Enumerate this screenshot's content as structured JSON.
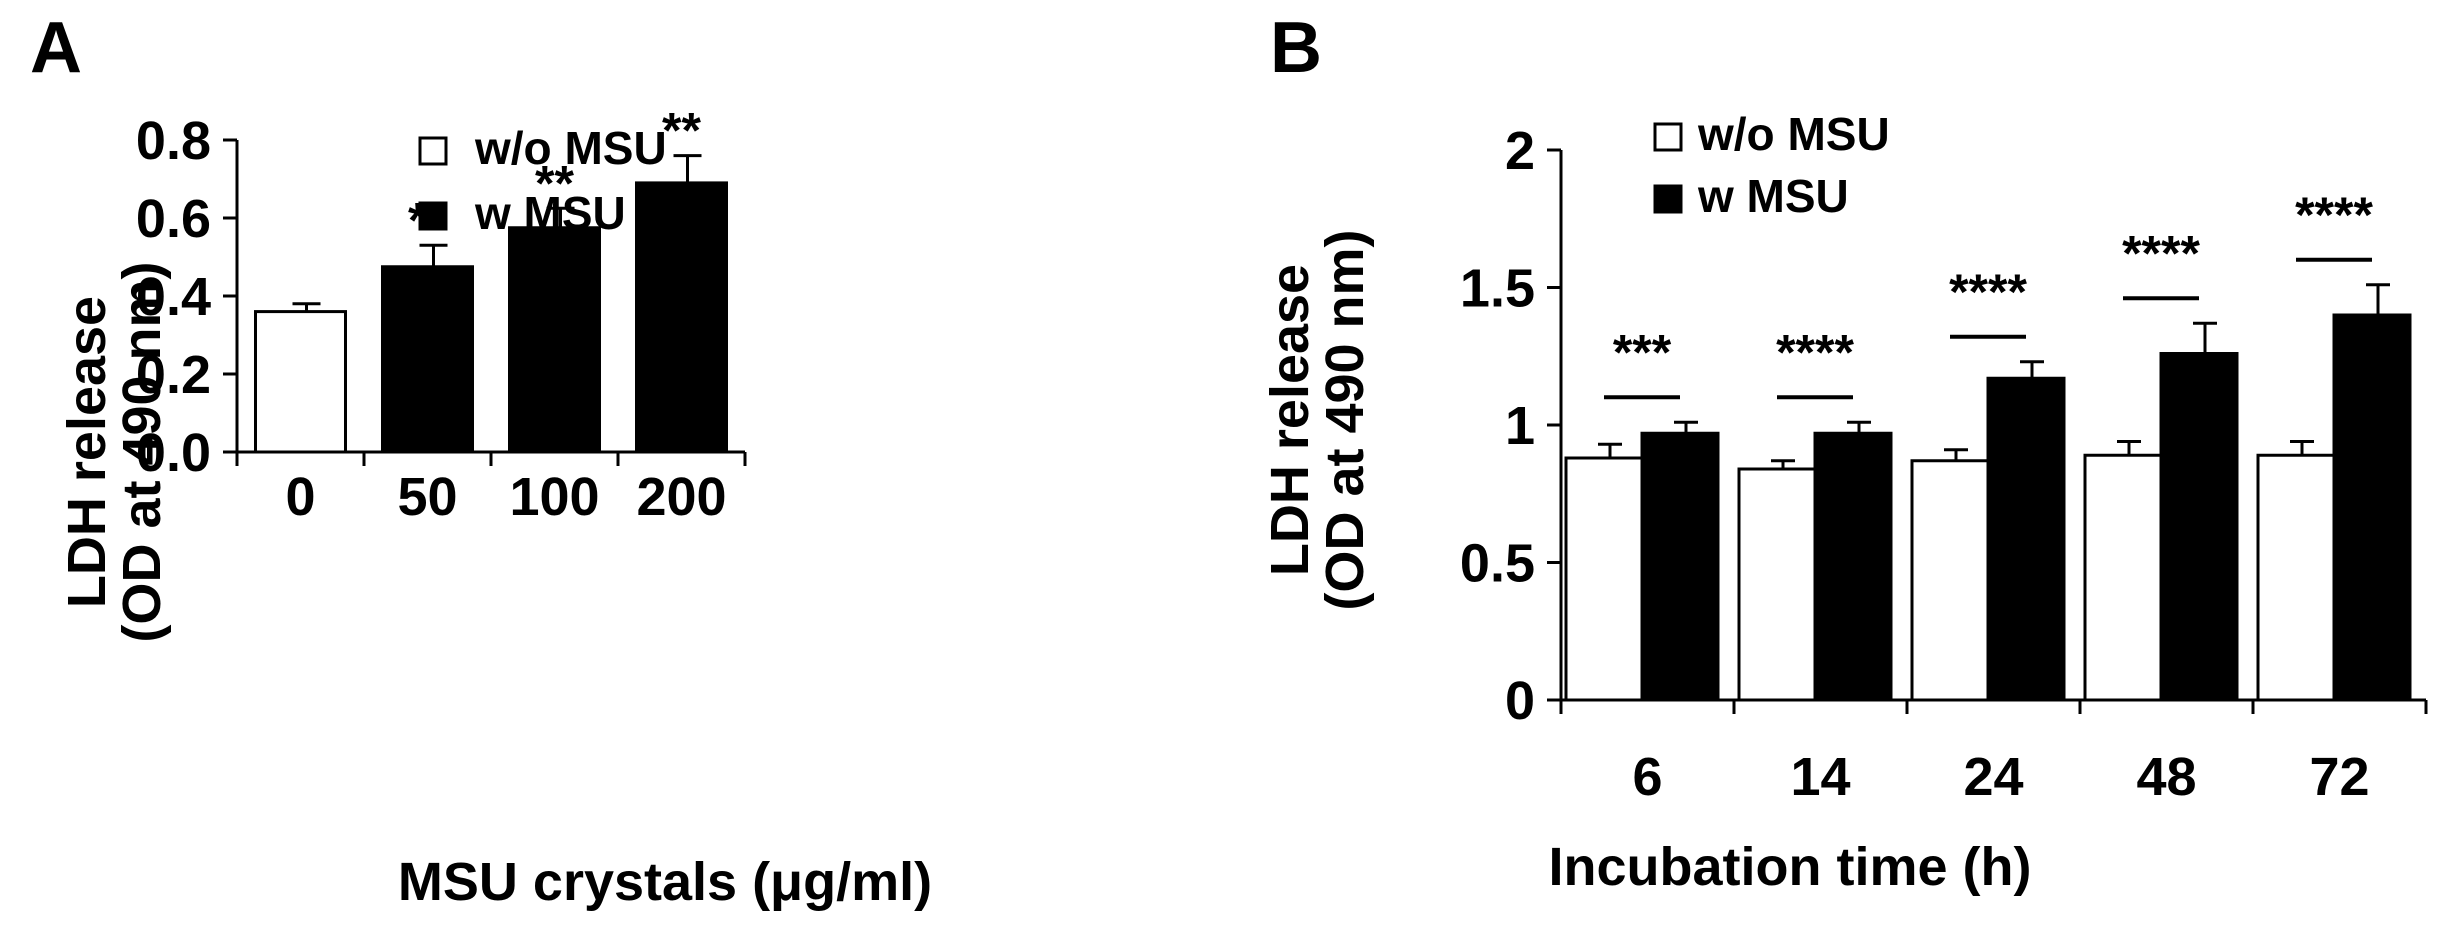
{
  "chart_data": [
    {
      "panel": "A",
      "type": "bar",
      "xlabel": "MSU crystals (μg/ml)",
      "ylabel_line1": "LDH release",
      "ylabel_line2": "(OD at 490 nm)",
      "ylim": [
        0,
        0.8
      ],
      "yticks": [
        "0.0",
        "0.2",
        "0.4",
        "0.6",
        "0.8"
      ],
      "categories": [
        "0",
        "50",
        "100",
        "200"
      ],
      "legend": [
        {
          "name": "w/o MSU",
          "color": "#ffffff"
        },
        {
          "name": "w MSU",
          "color": "#000000"
        }
      ],
      "bars": [
        {
          "category": "0",
          "series": "w/o MSU",
          "value": 0.36,
          "error": 0.02,
          "sig": ""
        },
        {
          "category": "50",
          "series": "w MSU",
          "value": 0.475,
          "error": 0.055,
          "sig": "**"
        },
        {
          "category": "100",
          "series": "w MSU",
          "value": 0.575,
          "error": 0.05,
          "sig": "**"
        },
        {
          "category": "200",
          "series": "w MSU",
          "value": 0.69,
          "error": 0.07,
          "sig": "**"
        }
      ]
    },
    {
      "panel": "B",
      "type": "bar",
      "xlabel": "Incubation time (h)",
      "ylabel_line1": "LDH release",
      "ylabel_line2": "(OD at 490 nm)",
      "ylim": [
        0,
        2
      ],
      "yticks": [
        "0",
        "0.5",
        "1",
        "1.5",
        "2"
      ],
      "categories": [
        "6",
        "14",
        "24",
        "48",
        "72"
      ],
      "legend": [
        {
          "name": "w/o MSU",
          "color": "#ffffff"
        },
        {
          "name": "w MSU",
          "color": "#000000"
        }
      ],
      "series": [
        {
          "name": "w/o MSU",
          "values": [
            0.88,
            0.84,
            0.87,
            0.89,
            0.89
          ],
          "errors": [
            0.05,
            0.03,
            0.04,
            0.05,
            0.05
          ]
        },
        {
          "name": "w MSU",
          "values": [
            0.97,
            0.97,
            1.17,
            1.26,
            1.4
          ],
          "errors": [
            0.04,
            0.04,
            0.06,
            0.11,
            0.11
          ]
        }
      ],
      "significance": [
        "***",
        "****",
        "****",
        "****",
        "****"
      ]
    }
  ]
}
